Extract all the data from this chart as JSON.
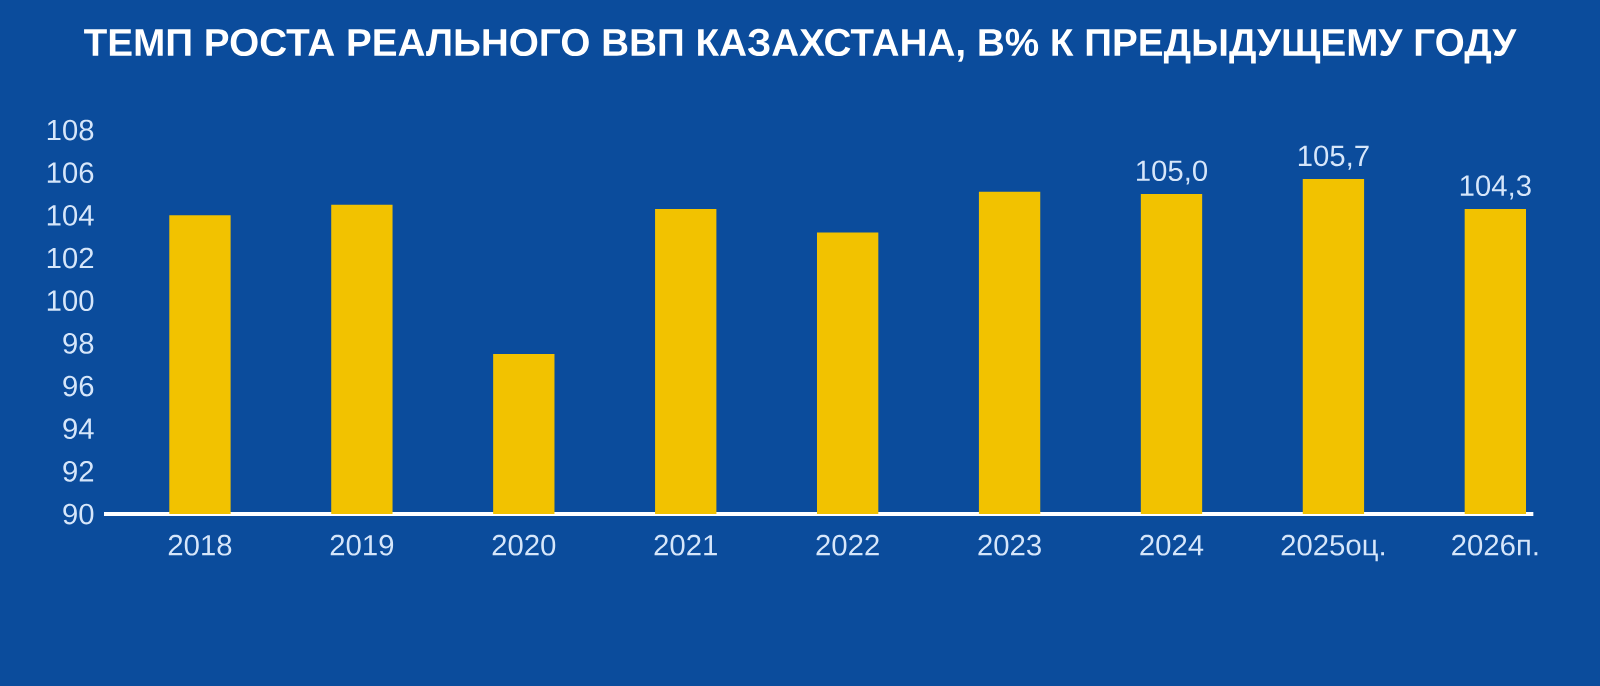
{
  "chart_data": {
    "type": "bar",
    "title": "ТЕМП РОСТА РЕАЛЬНОГО ВВП КАЗАХСТАНА, В% К ПРЕДЫДУЩЕМУ ГОДУ",
    "categories": [
      "2018",
      "2019",
      "2020",
      "2021",
      "2022",
      "2023",
      "2024",
      "2025оц.",
      "2026п."
    ],
    "values": [
      104.0,
      104.5,
      97.5,
      104.3,
      103.2,
      105.1,
      105.0,
      105.7,
      104.3
    ],
    "value_labels": [
      null,
      null,
      null,
      null,
      null,
      null,
      "105,0",
      "105,7",
      "104,3"
    ],
    "color": "#f2c200",
    "ylim": [
      90,
      108
    ],
    "yticks": [
      90,
      92,
      94,
      96,
      98,
      100,
      102,
      104,
      106,
      108
    ],
    "grid": false
  }
}
